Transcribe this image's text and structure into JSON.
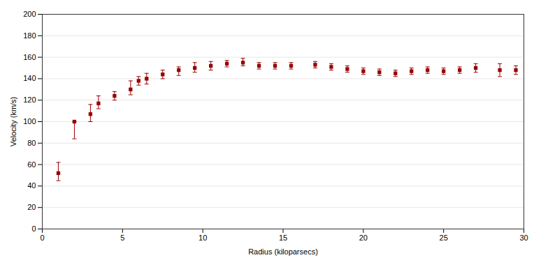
{
  "chart_data": {
    "type": "scatter",
    "xlabel": "Radius (kiloparsecs)",
    "ylabel": "Velocity (km/s)",
    "x": [
      1.0,
      2.0,
      3.0,
      3.5,
      4.5,
      5.5,
      6.0,
      6.5,
      7.5,
      8.5,
      9.5,
      10.5,
      11.5,
      12.5,
      13.5,
      14.5,
      15.5,
      17.0,
      18.0,
      19.0,
      20.0,
      21.0,
      22.0,
      23.0,
      24.0,
      25.0,
      26.0,
      27.0,
      28.5,
      29.5
    ],
    "values": [
      52,
      100,
      107,
      117,
      124,
      130,
      138,
      140,
      144,
      148,
      150,
      152,
      154,
      155,
      152,
      152,
      152,
      153,
      151,
      149,
      147,
      146,
      145,
      147,
      148,
      147,
      148,
      150,
      148,
      148
    ],
    "yerr_lo": [
      7,
      16,
      7,
      5,
      4,
      5,
      4,
      5,
      4,
      5,
      4,
      4,
      3,
      3,
      3,
      3,
      3,
      3,
      3,
      3,
      3,
      3,
      3,
      3,
      3,
      3,
      3,
      4,
      6,
      4
    ],
    "yerr_hi": [
      10,
      0,
      9,
      7,
      4,
      8,
      4,
      5,
      4,
      3,
      5,
      4,
      3,
      4,
      3,
      3,
      3,
      3,
      3,
      3,
      3,
      3,
      3,
      3,
      3,
      3,
      3,
      4,
      6,
      4
    ],
    "color": "#990000",
    "marker": "square",
    "xlim": [
      0,
      30
    ],
    "ylim": [
      0,
      200
    ],
    "xticks": [
      0,
      5,
      10,
      15,
      20,
      25,
      30
    ],
    "yticks": [
      0,
      20,
      40,
      60,
      80,
      100,
      120,
      140,
      160,
      180,
      200
    ],
    "grid": "y"
  }
}
